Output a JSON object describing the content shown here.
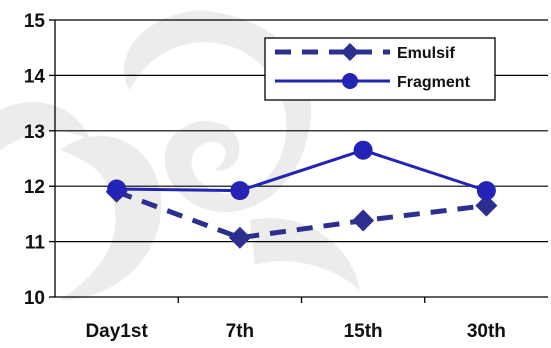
{
  "chart_data": {
    "type": "line",
    "categories": [
      "Day1st",
      "7th",
      "15th",
      "30th"
    ],
    "series": [
      {
        "name": "Emulsif",
        "values": [
          11.9,
          11.07,
          11.38,
          11.65
        ],
        "color": "#2b2f8f",
        "line_style": "dashed",
        "marker": "diamond"
      },
      {
        "name": "Fragment",
        "values": [
          11.95,
          11.92,
          12.65,
          11.92
        ],
        "color": "#2323b5",
        "line_style": "solid",
        "marker": "circle"
      }
    ],
    "title": "",
    "xlabel": "",
    "ylabel": "",
    "ylim": [
      10,
      15
    ],
    "yticks": [
      "10",
      "11",
      "12",
      "13",
      "14",
      "15"
    ],
    "grid": true,
    "legend_position": "top-right"
  }
}
